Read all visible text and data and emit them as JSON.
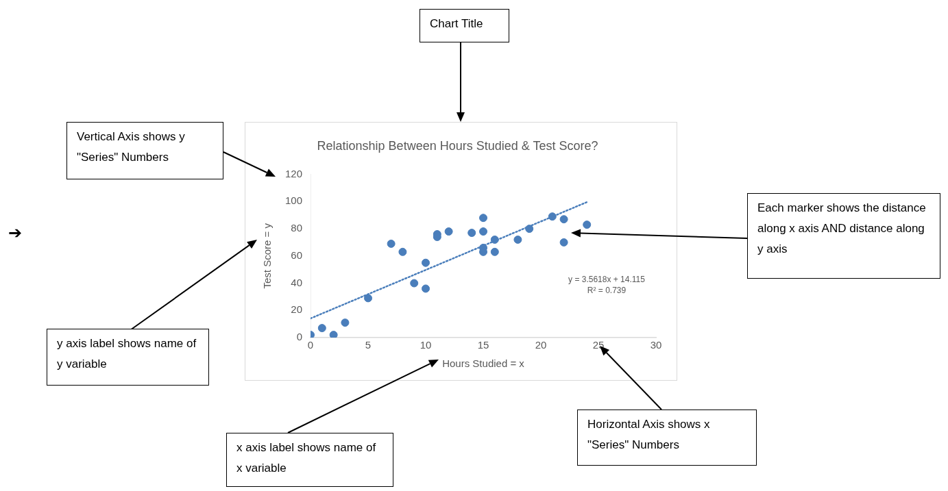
{
  "chart_data": {
    "type": "scatter",
    "title": "Relationship Between Hours Studied & Test Score?",
    "xlabel": "Hours Studied = x",
    "ylabel": "Test Score = y",
    "xlim": [
      0,
      30
    ],
    "xticks": [
      0,
      5,
      10,
      15,
      20,
      25,
      30
    ],
    "ylim": [
      0,
      120
    ],
    "yticks": [
      0,
      20,
      40,
      60,
      80,
      100,
      120
    ],
    "grid": false,
    "legend": false,
    "marker": "circle",
    "series": [
      {
        "color": "#4a7ebb",
        "x": [
          0,
          1,
          2,
          3,
          5,
          7,
          8,
          9,
          10,
          10,
          11,
          11,
          12,
          14,
          15,
          15,
          15,
          15,
          16,
          16,
          18,
          19,
          21,
          22,
          22,
          24
        ],
        "values": [
          2,
          7,
          2,
          11,
          29,
          69,
          63,
          40,
          55,
          36,
          76,
          74,
          78,
          77,
          88,
          78,
          66,
          63,
          72,
          63,
          72,
          80,
          89,
          87,
          70,
          83
        ]
      },
      {
        "type": "line",
        "color": "#4a7ebb",
        "line_style": "dotted",
        "marker": "none",
        "x": [
          0,
          24
        ],
        "values": [
          14.1,
          99.6
        ]
      }
    ],
    "annotations": [
      "Chart Title",
      "Vertical Axis shows y \"Series\" Numbers",
      "y axis label shows name of y variable",
      "x axis label shows name of x variable",
      "Horizontal Axis shows x \"Series\" Numbers",
      "Each marker shows the distance along x axis AND distance along y axis",
      "y = 3.5618x + 14.115",
      "R² = 0.739",
      "➔"
    ]
  }
}
